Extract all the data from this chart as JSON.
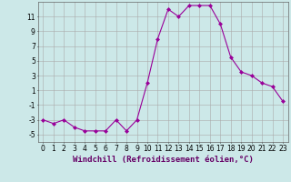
{
  "x": [
    0,
    1,
    2,
    3,
    4,
    5,
    6,
    7,
    8,
    9,
    10,
    11,
    12,
    13,
    14,
    15,
    16,
    17,
    18,
    19,
    20,
    21,
    22,
    23
  ],
  "y": [
    -3,
    -3.5,
    -3,
    -4,
    -4.5,
    -4.5,
    -4.5,
    -3,
    -4.5,
    -3,
    2,
    8,
    12,
    11,
    12.5,
    12.5,
    12.5,
    10,
    5.5,
    3.5,
    3,
    2,
    1.5,
    -0.5
  ],
  "line_color": "#990099",
  "marker": "D",
  "marker_size": 2,
  "bg_color": "#cce8e8",
  "grid_color": "#aaaaaa",
  "xlabel": "Windchill (Refroidissement éolien,°C)",
  "xlabel_fontsize": 6.5,
  "yticks": [
    -5,
    -3,
    -1,
    1,
    3,
    5,
    7,
    9,
    11
  ],
  "ylim": [
    -6,
    13
  ],
  "xlim": [
    -0.5,
    23.5
  ],
  "xticks": [
    0,
    1,
    2,
    3,
    4,
    5,
    6,
    7,
    8,
    9,
    10,
    11,
    12,
    13,
    14,
    15,
    16,
    17,
    18,
    19,
    20,
    21,
    22,
    23
  ],
  "tick_fontsize": 5.5,
  "figsize": [
    3.2,
    2.0
  ],
  "dpi": 100
}
